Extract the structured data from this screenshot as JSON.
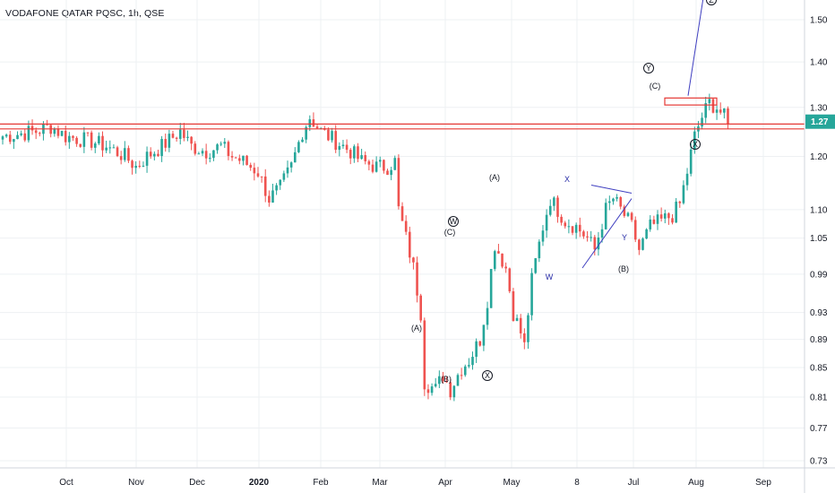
{
  "chart_data": {
    "type": "candlestick",
    "title": "VODAFONE QATAR PQSC, 1h, QSE",
    "y_axis": {
      "ticks": [
        "1.50",
        "1.40",
        "1.30",
        "1.20",
        "1.10",
        "1.05",
        "0.99",
        "0.93",
        "0.89",
        "0.85",
        "0.81",
        "0.77",
        "0.73"
      ],
      "log_scale": true,
      "position": "right"
    },
    "x_axis": {
      "ticks": [
        {
          "label": "Oct"
        },
        {
          "label": "Nov"
        },
        {
          "label": "Dec"
        },
        {
          "label": "2020",
          "bold": true
        },
        {
          "label": "Feb"
        },
        {
          "label": "Mar"
        },
        {
          "label": "Apr"
        },
        {
          "label": "May"
        },
        {
          "label": "8"
        },
        {
          "label": "Jul"
        },
        {
          "label": "Aug"
        },
        {
          "label": "Sep"
        }
      ]
    },
    "last_price": "1.27",
    "colors": {
      "up": "#26a69a",
      "down": "#ef5350",
      "resistance": "#e53935",
      "projection": "#3f3fc0",
      "grid": "#eef0f3",
      "axis_text": "#131722",
      "price_label_bg": "#26a69a"
    },
    "grid": true,
    "price_path": [
      [
        0,
        1.24
      ],
      [
        9,
        1.25
      ],
      [
        13,
        1.26
      ],
      [
        17,
        1.24
      ],
      [
        24,
        1.23
      ],
      [
        28,
        1.22
      ],
      [
        33,
        1.2
      ],
      [
        36,
        1.18
      ],
      [
        39,
        1.2
      ],
      [
        43,
        1.22
      ],
      [
        48,
        1.25
      ],
      [
        51,
        1.22
      ],
      [
        55,
        1.21
      ],
      [
        59,
        1.22
      ],
      [
        62,
        1.2
      ],
      [
        65,
        1.19
      ],
      [
        69,
        1.17
      ],
      [
        72,
        1.12
      ],
      [
        75,
        1.14
      ],
      [
        78,
        1.18
      ],
      [
        81,
        1.25
      ],
      [
        83,
        1.28
      ],
      [
        86,
        1.25
      ],
      [
        90,
        1.23
      ],
      [
        94,
        1.21
      ],
      [
        97,
        1.19
      ],
      [
        101,
        1.18
      ],
      [
        104,
        1.18
      ],
      [
        106,
        1.19
      ],
      [
        107,
        1.1
      ],
      [
        109,
        1.05
      ],
      [
        111,
        1.0
      ],
      [
        113,
        0.93
      ],
      [
        114,
        0.83
      ],
      [
        117,
        0.82
      ],
      [
        119,
        0.84
      ],
      [
        121,
        0.82
      ],
      [
        124,
        0.85
      ],
      [
        126,
        0.86
      ],
      [
        129,
        0.89
      ],
      [
        131,
        0.95
      ],
      [
        133,
        1.04
      ],
      [
        136,
        1.0
      ],
      [
        138,
        0.93
      ],
      [
        140,
        0.9
      ],
      [
        141,
        0.88
      ],
      [
        143,
        0.98
      ],
      [
        146,
        1.07
      ],
      [
        148,
        1.12
      ],
      [
        150,
        1.1
      ],
      [
        152,
        1.08
      ],
      [
        155,
        1.07
      ],
      [
        158,
        1.05
      ],
      [
        160,
        1.03
      ],
      [
        163,
        1.1
      ],
      [
        165,
        1.12
      ],
      [
        168,
        1.09
      ],
      [
        170,
        1.07
      ],
      [
        172,
        1.03
      ],
      [
        175,
        1.07
      ],
      [
        178,
        1.08
      ],
      [
        181,
        1.09
      ],
      [
        183,
        1.11
      ],
      [
        185,
        1.17
      ],
      [
        187,
        1.24
      ],
      [
        189,
        1.28
      ],
      [
        191,
        1.31
      ],
      [
        193,
        1.3
      ],
      [
        195,
        1.28
      ],
      [
        196,
        1.26
      ]
    ],
    "resistance_lines": [
      1.265,
      1.255
    ],
    "annotations": [
      {
        "text": "(A)",
        "circled": false
      },
      {
        "text": "(B)",
        "circled": false
      },
      {
        "text": "W",
        "circled": true
      },
      {
        "text": "(C)",
        "circled": false
      },
      {
        "text": "X",
        "circled": true
      },
      {
        "text": "(A)",
        "circled": false
      },
      {
        "text": "X",
        "circled": false
      },
      {
        "text": "W",
        "circled": false
      },
      {
        "text": "Y",
        "circled": false
      },
      {
        "text": "(B)",
        "circled": false
      },
      {
        "text": "Y",
        "circled": true
      },
      {
        "text": "(C)",
        "circled": false
      },
      {
        "text": "X",
        "circled": true
      },
      {
        "text": "Z",
        "circled": true
      }
    ]
  }
}
